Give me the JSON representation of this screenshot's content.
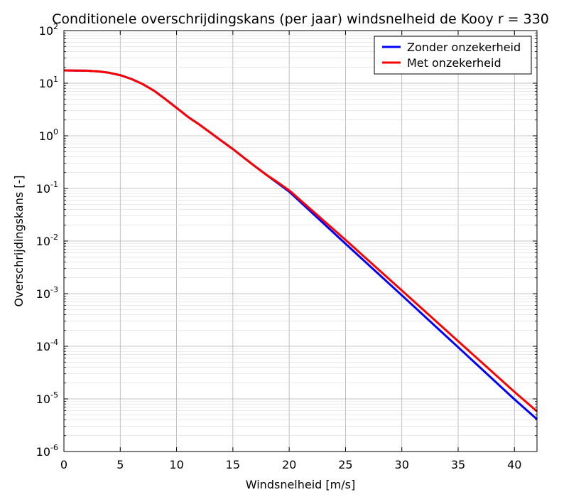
{
  "chart_data": {
    "type": "line",
    "title": "Conditionele overschrijdingskans (per jaar) windsnelheid de Kooy r = 330",
    "xlabel": "Windsnelheid [m/s]",
    "ylabel": "Overschrijdingskans [-]",
    "xlim": [
      0,
      42
    ],
    "ylim": [
      1e-06,
      100
    ],
    "yscale": "log",
    "grid": true,
    "legend_position": "top-right",
    "x_ticks": [
      "0",
      "5",
      "10",
      "15",
      "20",
      "25",
      "30",
      "35",
      "40"
    ],
    "y_ticks": [
      {
        "base": "10",
        "exp": "-6"
      },
      {
        "base": "10",
        "exp": "-5"
      },
      {
        "base": "10",
        "exp": "-4"
      },
      {
        "base": "10",
        "exp": "-3"
      },
      {
        "base": "10",
        "exp": "-2"
      },
      {
        "base": "10",
        "exp": "-1"
      },
      {
        "base": "10",
        "exp": "0"
      },
      {
        "base": "10",
        "exp": "1"
      },
      {
        "base": "10",
        "exp": "2"
      }
    ],
    "series": [
      {
        "name": "Zonder onzekerheid",
        "color": "#0000ff",
        "x": [
          0,
          1,
          2,
          3,
          4,
          5,
          6,
          7,
          8,
          9,
          10,
          11,
          12,
          13,
          14,
          15,
          16,
          17,
          18,
          19,
          20,
          25,
          30,
          35,
          40,
          42
        ],
        "y": [
          17.5,
          17.4,
          17.3,
          16.8,
          15.8,
          14.2,
          12.0,
          9.6,
          7.2,
          5.0,
          3.4,
          2.3,
          1.65,
          1.15,
          0.8,
          0.56,
          0.38,
          0.26,
          0.18,
          0.125,
          0.087,
          0.0089,
          0.00093,
          9.6e-05,
          9.8e-06,
          4.1e-06
        ]
      },
      {
        "name": "Met onzekerheid",
        "color": "#ff0000",
        "x": [
          0,
          1,
          2,
          3,
          4,
          5,
          6,
          7,
          8,
          9,
          10,
          11,
          12,
          13,
          14,
          15,
          16,
          17,
          18,
          19,
          20,
          25,
          30,
          35,
          40,
          42
        ],
        "y": [
          17.5,
          17.4,
          17.3,
          16.8,
          15.8,
          14.2,
          12.0,
          9.6,
          7.2,
          5.0,
          3.4,
          2.3,
          1.65,
          1.15,
          0.8,
          0.56,
          0.38,
          0.26,
          0.18,
          0.13,
          0.092,
          0.0105,
          0.00115,
          0.000125,
          1.36e-05,
          5.8e-06
        ]
      }
    ]
  }
}
